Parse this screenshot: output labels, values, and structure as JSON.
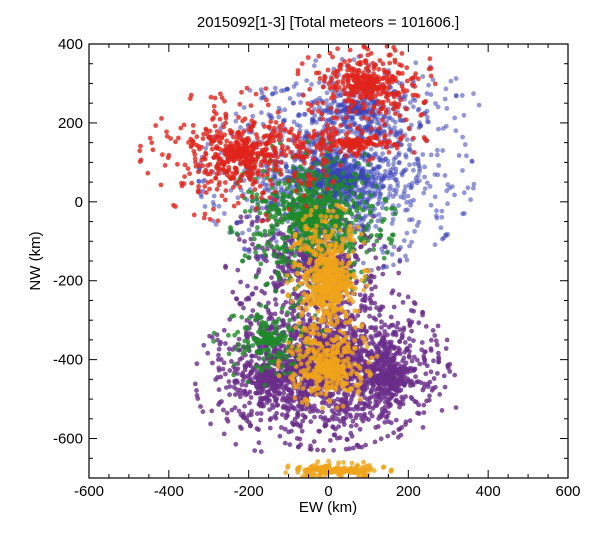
{
  "chart_data": {
    "type": "scatter",
    "title": "2015092[1-3] [Total meteors = 101606.]",
    "xlabel": "EW (km)",
    "ylabel": "NW (km)",
    "xlim": [
      -600,
      600
    ],
    "ylim": [
      -700,
      400
    ],
    "x_ticks": [
      "-600",
      "-400",
      "-200",
      "0",
      "200",
      "400",
      "600"
    ],
    "y_ticks": [
      "-600",
      "-400",
      "-200",
      "0",
      "200",
      "400"
    ],
    "x_tick_values": [
      -600,
      -400,
      -200,
      0,
      200,
      400,
      600
    ],
    "y_tick_values": [
      -600,
      -400,
      -200,
      0,
      200,
      400
    ],
    "grid": false,
    "total_meteors": 101606,
    "series": [
      {
        "color": "#6a2d8a",
        "regions": [
          {
            "cx": 0,
            "cy": -400,
            "rx": 240,
            "ry": 200,
            "n": 1600
          },
          {
            "cx": -150,
            "cy": -450,
            "rx": 160,
            "ry": 160,
            "n": 500
          },
          {
            "cx": 150,
            "cy": -450,
            "rx": 160,
            "ry": 160,
            "n": 500
          },
          {
            "cx": -40,
            "cy": -150,
            "rx": 190,
            "ry": 170,
            "n": 600
          }
        ]
      },
      {
        "color": "#3a43b8",
        "regions": [
          {
            "cx": 20,
            "cy": 60,
            "rx": 300,
            "ry": 210,
            "n": 1500
          },
          {
            "cx": 80,
            "cy": 230,
            "rx": 260,
            "ry": 120,
            "n": 400
          }
        ]
      },
      {
        "color": "#1f8a2a",
        "regions": [
          {
            "cx": -40,
            "cy": -40,
            "rx": 180,
            "ry": 180,
            "n": 900
          },
          {
            "cx": -150,
            "cy": -350,
            "rx": 120,
            "ry": 100,
            "n": 200
          }
        ]
      },
      {
        "color": "#f0a41a",
        "regions": [
          {
            "cx": 0,
            "cy": -200,
            "rx": 90,
            "ry": 170,
            "n": 700
          },
          {
            "cx": 0,
            "cy": -420,
            "rx": 110,
            "ry": 90,
            "n": 400
          },
          {
            "cx": 20,
            "cy": -680,
            "rx": 120,
            "ry": 20,
            "n": 200
          }
        ]
      },
      {
        "color": "#e0241c",
        "regions": [
          {
            "cx": -220,
            "cy": 120,
            "rx": 220,
            "ry": 150,
            "n": 600
          },
          {
            "cx": 100,
            "cy": 300,
            "rx": 160,
            "ry": 100,
            "n": 400
          },
          {
            "cx": 60,
            "cy": 150,
            "rx": 200,
            "ry": 40,
            "n": 200
          }
        ]
      }
    ]
  }
}
